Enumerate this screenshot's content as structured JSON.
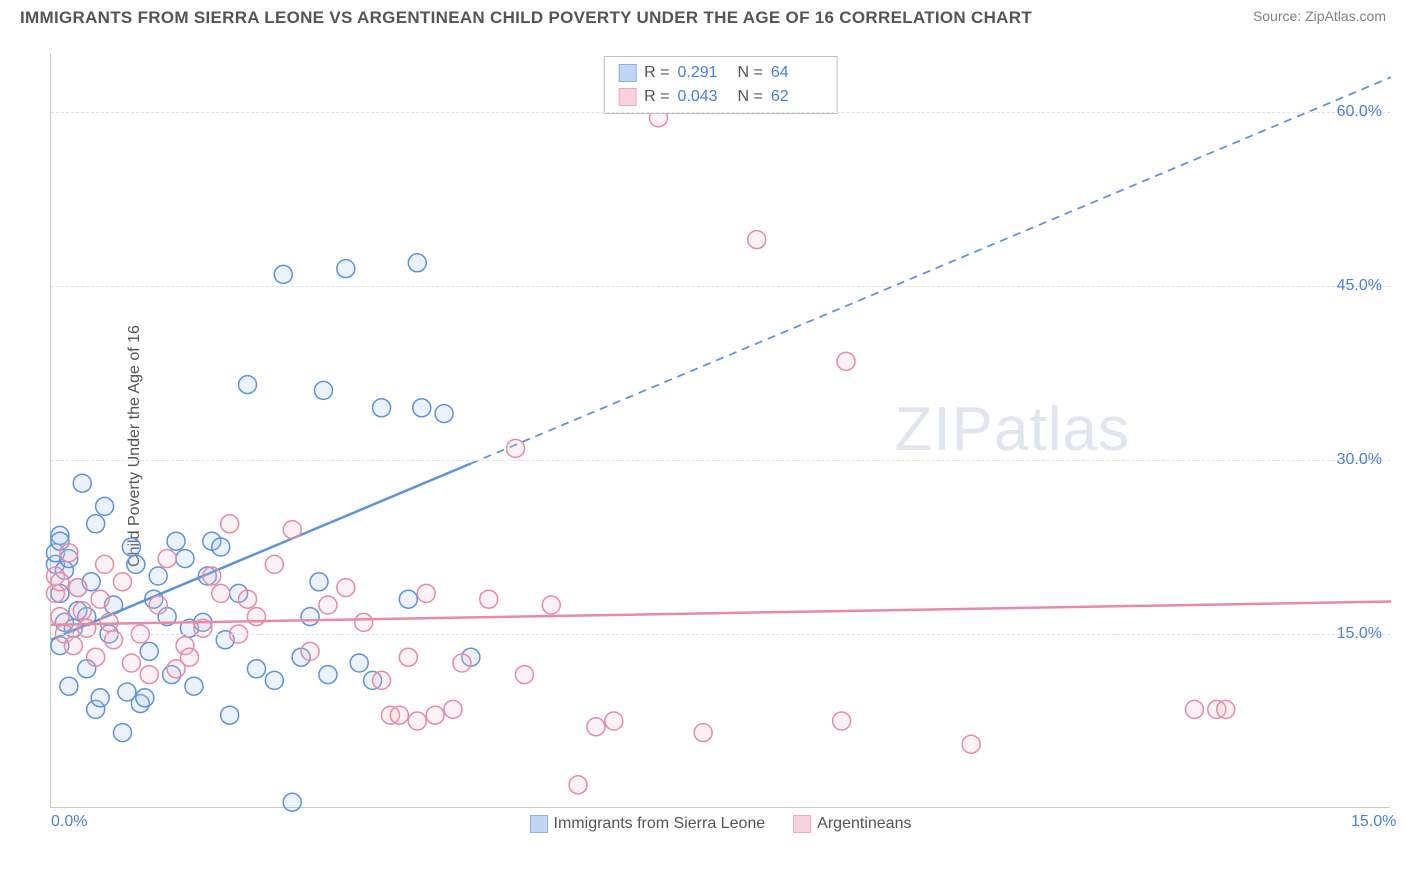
{
  "header": {
    "title": "IMMIGRANTS FROM SIERRA LEONE VS ARGENTINEAN CHILD POVERTY UNDER THE AGE OF 16 CORRELATION CHART",
    "source": "Source: ZipAtlas.com"
  },
  "chart": {
    "type": "scatter",
    "ylabel": "Child Poverty Under the Age of 16",
    "xlim": [
      0.0,
      15.0
    ],
    "ylim": [
      0.0,
      65.0
    ],
    "xticks": [
      {
        "v": 0.0,
        "l": "0.0%"
      },
      {
        "v": 15.0,
        "l": "15.0%"
      }
    ],
    "yticks": [
      {
        "v": 15.0,
        "l": "15.0%"
      },
      {
        "v": 30.0,
        "l": "30.0%"
      },
      {
        "v": 45.0,
        "l": "45.0%"
      },
      {
        "v": 60.0,
        "l": "60.0%"
      }
    ],
    "grid_color": "#e0e0e0",
    "background_color": "#ffffff",
    "axis_color": "#c8c8c8",
    "text_color": "#555555",
    "tick_color": "#4a7fd6",
    "marker_radius": 9,
    "marker_stroke_width": 1.5,
    "marker_fill_opacity": 0.22,
    "series": [
      {
        "name": "Immigrants from Sierra Leone",
        "color_stroke": "#5d93d9",
        "color_fill": "#a7c6ed",
        "regression": {
          "x1": 0.0,
          "y1": 14.5,
          "x2": 15.0,
          "y2": 63.0,
          "solid_until_x": 4.7,
          "stroke_width": 2.5,
          "dash": "8,6"
        },
        "stats": {
          "R": "0.291",
          "N": "64"
        },
        "points": [
          [
            0.05,
            21.0
          ],
          [
            0.05,
            22.0
          ],
          [
            0.1,
            14.0
          ],
          [
            0.1,
            18.5
          ],
          [
            0.1,
            23.5
          ],
          [
            0.1,
            23.0
          ],
          [
            0.15,
            20.5
          ],
          [
            0.15,
            16.0
          ],
          [
            0.2,
            10.5
          ],
          [
            0.2,
            21.5
          ],
          [
            0.25,
            15.5
          ],
          [
            0.3,
            19.0
          ],
          [
            0.3,
            17.0
          ],
          [
            0.35,
            28.0
          ],
          [
            0.4,
            16.5
          ],
          [
            0.4,
            12.0
          ],
          [
            0.45,
            19.5
          ],
          [
            0.5,
            24.5
          ],
          [
            0.5,
            8.5
          ],
          [
            0.55,
            9.5
          ],
          [
            0.6,
            26.0
          ],
          [
            0.65,
            15.0
          ],
          [
            0.7,
            17.5
          ],
          [
            0.8,
            6.5
          ],
          [
            0.85,
            10.0
          ],
          [
            0.9,
            22.5
          ],
          [
            0.95,
            21.0
          ],
          [
            1.0,
            9.0
          ],
          [
            1.05,
            9.5
          ],
          [
            1.1,
            13.5
          ],
          [
            1.15,
            18.0
          ],
          [
            1.2,
            20.0
          ],
          [
            1.3,
            16.5
          ],
          [
            1.35,
            11.5
          ],
          [
            1.4,
            23.0
          ],
          [
            1.5,
            21.5
          ],
          [
            1.55,
            15.5
          ],
          [
            1.6,
            10.5
          ],
          [
            1.7,
            16.0
          ],
          [
            1.75,
            20.0
          ],
          [
            1.8,
            23.0
          ],
          [
            1.9,
            22.5
          ],
          [
            1.95,
            14.5
          ],
          [
            2.0,
            8.0
          ],
          [
            2.1,
            18.5
          ],
          [
            2.2,
            36.5
          ],
          [
            2.3,
            12.0
          ],
          [
            2.5,
            11.0
          ],
          [
            2.6,
            46.0
          ],
          [
            2.7,
            0.5
          ],
          [
            2.8,
            13.0
          ],
          [
            2.9,
            16.5
          ],
          [
            3.0,
            19.5
          ],
          [
            3.05,
            36.0
          ],
          [
            3.1,
            11.5
          ],
          [
            3.3,
            46.5
          ],
          [
            3.45,
            12.5
          ],
          [
            3.6,
            11.0
          ],
          [
            3.7,
            34.5
          ],
          [
            4.0,
            18.0
          ],
          [
            4.1,
            47.0
          ],
          [
            4.15,
            34.5
          ],
          [
            4.4,
            34.0
          ],
          [
            4.7,
            13.0
          ]
        ]
      },
      {
        "name": "Argentineans",
        "color_stroke": "#e88aa5",
        "color_fill": "#f3c0cf",
        "regression": {
          "x1": 0.0,
          "y1": 15.8,
          "x2": 15.0,
          "y2": 17.8,
          "solid_until_x": 15.0,
          "stroke_width": 2.5,
          "dash": ""
        },
        "stats": {
          "R": "0.043",
          "N": "62"
        },
        "points": [
          [
            0.05,
            18.5
          ],
          [
            0.05,
            20.0
          ],
          [
            0.1,
            19.5
          ],
          [
            0.1,
            16.5
          ],
          [
            0.15,
            15.0
          ],
          [
            0.2,
            22.0
          ],
          [
            0.25,
            14.0
          ],
          [
            0.3,
            19.0
          ],
          [
            0.35,
            17.0
          ],
          [
            0.4,
            15.5
          ],
          [
            0.5,
            13.0
          ],
          [
            0.55,
            18.0
          ],
          [
            0.6,
            21.0
          ],
          [
            0.65,
            16.0
          ],
          [
            0.7,
            14.5
          ],
          [
            0.8,
            19.5
          ],
          [
            0.9,
            12.5
          ],
          [
            1.0,
            15.0
          ],
          [
            1.1,
            11.5
          ],
          [
            1.2,
            17.5
          ],
          [
            1.3,
            21.5
          ],
          [
            1.4,
            12.0
          ],
          [
            1.5,
            14.0
          ],
          [
            1.55,
            13.0
          ],
          [
            1.7,
            15.5
          ],
          [
            1.8,
            20.0
          ],
          [
            1.9,
            18.5
          ],
          [
            2.0,
            24.5
          ],
          [
            2.1,
            15.0
          ],
          [
            2.2,
            18.0
          ],
          [
            2.3,
            16.5
          ],
          [
            2.5,
            21.0
          ],
          [
            2.7,
            24.0
          ],
          [
            2.9,
            13.5
          ],
          [
            3.1,
            17.5
          ],
          [
            3.3,
            19.0
          ],
          [
            3.5,
            16.0
          ],
          [
            3.7,
            11.0
          ],
          [
            3.8,
            8.0
          ],
          [
            3.9,
            8.0
          ],
          [
            4.0,
            13.0
          ],
          [
            4.1,
            7.5
          ],
          [
            4.2,
            18.5
          ],
          [
            4.3,
            8.0
          ],
          [
            4.5,
            8.5
          ],
          [
            4.6,
            12.5
          ],
          [
            4.9,
            18.0
          ],
          [
            5.2,
            31.0
          ],
          [
            5.3,
            11.5
          ],
          [
            5.6,
            17.5
          ],
          [
            5.9,
            2.0
          ],
          [
            6.1,
            7.0
          ],
          [
            6.3,
            7.5
          ],
          [
            6.8,
            59.5
          ],
          [
            7.3,
            6.5
          ],
          [
            7.9,
            49.0
          ],
          [
            8.85,
            7.5
          ],
          [
            8.9,
            38.5
          ],
          [
            10.3,
            5.5
          ],
          [
            12.8,
            8.5
          ],
          [
            13.05,
            8.5
          ],
          [
            13.15,
            8.5
          ]
        ]
      }
    ],
    "stats_box": {
      "label_R": "R =",
      "label_N": "N ="
    },
    "watermark": {
      "bold": "ZIP",
      "thin": "atlas"
    }
  }
}
